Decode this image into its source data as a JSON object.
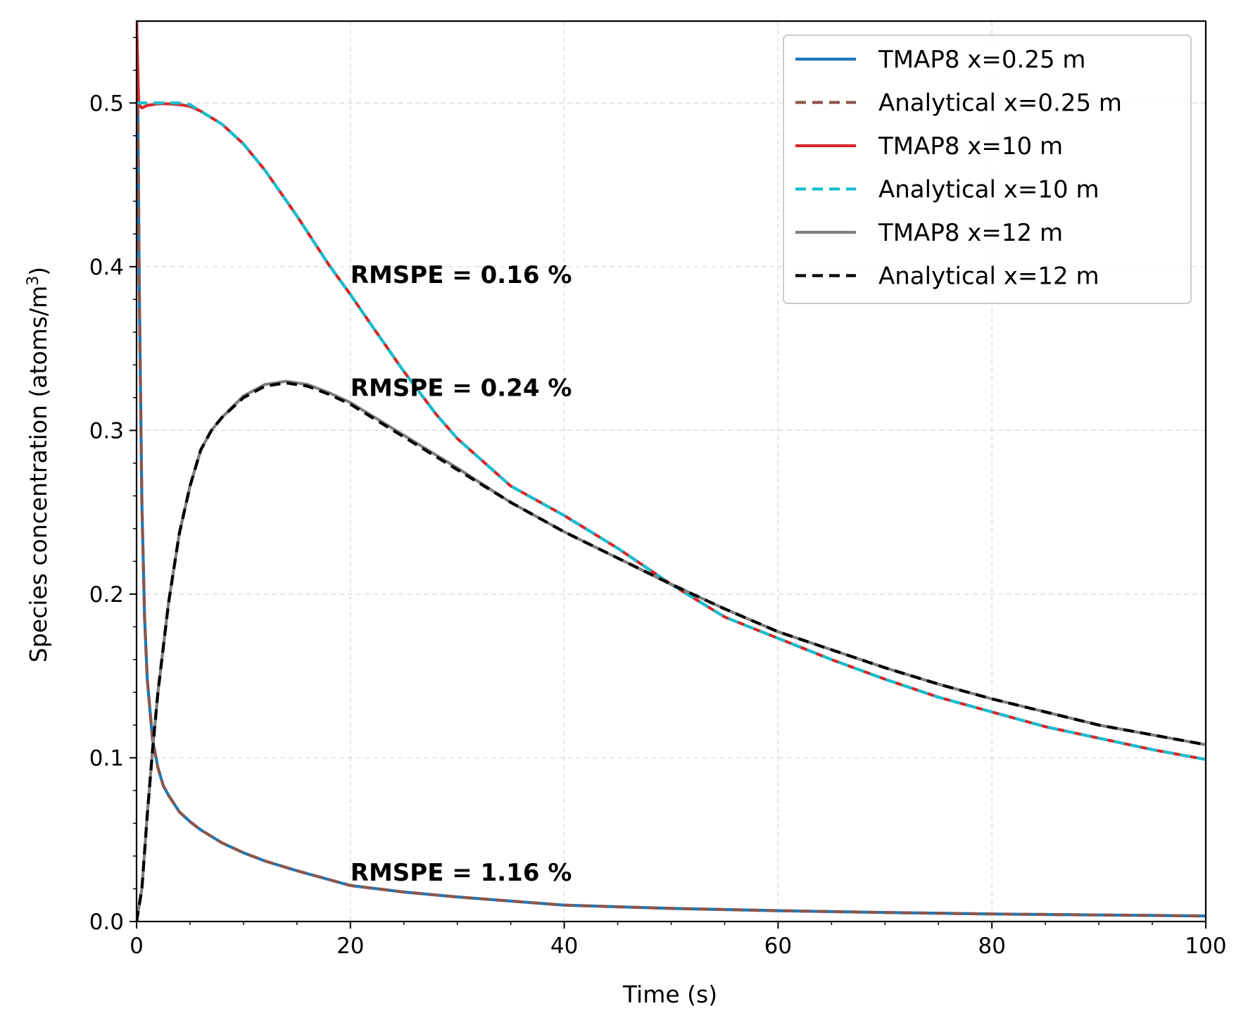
{
  "chart_data": {
    "type": "line",
    "xlabel": "Time (s)",
    "ylabel": "Species concentration (atoms/m",
    "ylabel_superscript": "3",
    "ylabel_suffix": ")",
    "xlim": [
      0,
      100
    ],
    "ylim": [
      0,
      0.55
    ],
    "xticks": [
      0,
      20,
      40,
      60,
      80,
      100
    ],
    "xtick_labels": [
      "0",
      "20",
      "40",
      "60",
      "80",
      "100"
    ],
    "yticks": [
      0.0,
      0.1,
      0.2,
      0.3,
      0.4,
      0.5
    ],
    "ytick_labels": [
      "0.0",
      "0.1",
      "0.2",
      "0.3",
      "0.4",
      "0.5"
    ],
    "grid": true,
    "legend_position": "top-right",
    "series": [
      {
        "name": "TMAP8 x=0.25 m",
        "color": "#1f77b4",
        "style": "solid",
        "x": [
          0,
          0.1,
          0.25,
          0.5,
          0.75,
          1,
          1.5,
          2,
          2.5,
          3,
          4,
          5,
          6,
          8,
          10,
          12,
          15,
          20,
          25,
          30,
          40,
          50,
          60,
          70,
          80,
          90,
          100
        ],
        "y": [
          0.55,
          0.52,
          0.39,
          0.255,
          0.186,
          0.148,
          0.111,
          0.094,
          0.083,
          0.077,
          0.067,
          0.061,
          0.056,
          0.048,
          0.042,
          0.037,
          0.031,
          0.022,
          0.018,
          0.015,
          0.01,
          0.008,
          0.0066,
          0.0055,
          0.0046,
          0.004,
          0.0034
        ]
      },
      {
        "name": "Analytical x=0.25 m",
        "color": "#8c564b",
        "style": "dashed",
        "x": [
          0,
          0.1,
          0.25,
          0.5,
          0.75,
          1,
          1.5,
          2,
          2.5,
          3,
          4,
          5,
          6,
          8,
          10,
          12,
          15,
          20,
          25,
          30,
          40,
          50,
          60,
          70,
          80,
          90,
          100
        ],
        "y": [
          0.55,
          0.52,
          0.39,
          0.255,
          0.186,
          0.148,
          0.111,
          0.094,
          0.083,
          0.077,
          0.067,
          0.061,
          0.056,
          0.048,
          0.042,
          0.037,
          0.031,
          0.022,
          0.018,
          0.015,
          0.01,
          0.008,
          0.0066,
          0.0055,
          0.0046,
          0.004,
          0.0034
        ]
      },
      {
        "name": "TMAP8 x=10 m",
        "color": "#d62728",
        "style": "solid",
        "x": [
          0,
          0.2,
          0.5,
          1,
          2,
          3,
          4,
          5,
          6,
          8,
          10,
          12,
          15,
          18,
          20,
          22,
          25,
          28,
          30,
          35,
          40,
          45,
          50,
          55,
          60,
          65,
          70,
          75,
          80,
          85,
          90,
          95,
          100
        ],
        "y": [
          0.55,
          0.499,
          0.497,
          0.4985,
          0.4995,
          0.4995,
          0.499,
          0.498,
          0.495,
          0.487,
          0.475,
          0.459,
          0.431,
          0.401,
          0.383,
          0.364,
          0.336,
          0.31,
          0.295,
          0.266,
          0.248,
          0.228,
          0.206,
          0.186,
          0.173,
          0.16,
          0.148,
          0.137,
          0.128,
          0.119,
          0.112,
          0.105,
          0.099
        ]
      },
      {
        "name": "Analytical x=10 m",
        "color": "#17becf",
        "style": "dashed",
        "x": [
          0,
          0.2,
          0.5,
          1,
          2,
          3,
          4,
          5,
          6,
          8,
          10,
          12,
          15,
          18,
          20,
          22,
          25,
          28,
          30,
          35,
          40,
          45,
          50,
          55,
          60,
          65,
          70,
          75,
          80,
          85,
          90,
          95,
          100
        ],
        "y": [
          0.5,
          0.5,
          0.5,
          0.5,
          0.5,
          0.5,
          0.5,
          0.499,
          0.495,
          0.487,
          0.475,
          0.459,
          0.431,
          0.401,
          0.383,
          0.364,
          0.336,
          0.31,
          0.295,
          0.266,
          0.248,
          0.228,
          0.206,
          0.186,
          0.173,
          0.16,
          0.148,
          0.137,
          0.128,
          0.119,
          0.112,
          0.105,
          0.099
        ]
      },
      {
        "name": "TMAP8 x=12 m",
        "color": "#7f7f7f",
        "style": "solid",
        "x": [
          0,
          0.5,
          1,
          1.5,
          2,
          3,
          4,
          5,
          6,
          7,
          8,
          10,
          12,
          14,
          16,
          18,
          20,
          25,
          30,
          35,
          40,
          45,
          50,
          55,
          60,
          65,
          70,
          75,
          80,
          85,
          90,
          95,
          100
        ],
        "y": [
          0,
          0.02,
          0.065,
          0.105,
          0.14,
          0.195,
          0.237,
          0.266,
          0.288,
          0.3,
          0.308,
          0.321,
          0.328,
          0.33,
          0.328,
          0.323,
          0.317,
          0.297,
          0.277,
          0.256,
          0.238,
          0.222,
          0.206,
          0.191,
          0.177,
          0.166,
          0.155,
          0.145,
          0.136,
          0.128,
          0.12,
          0.114,
          0.108
        ]
      },
      {
        "name": "Analytical x=12 m",
        "color": "#000000",
        "style": "dashed",
        "x": [
          0,
          0.5,
          1,
          1.5,
          2,
          3,
          4,
          5,
          6,
          7,
          8,
          10,
          12,
          14,
          16,
          18,
          20,
          25,
          30,
          35,
          40,
          45,
          50,
          55,
          60,
          65,
          70,
          75,
          80,
          85,
          90,
          95,
          100
        ],
        "y": [
          0,
          0.02,
          0.065,
          0.105,
          0.14,
          0.195,
          0.237,
          0.266,
          0.288,
          0.3,
          0.308,
          0.32,
          0.327,
          0.329,
          0.327,
          0.322,
          0.316,
          0.296,
          0.276,
          0.256,
          0.238,
          0.222,
          0.206,
          0.191,
          0.177,
          0.166,
          0.155,
          0.145,
          0.136,
          0.128,
          0.12,
          0.114,
          0.108
        ]
      }
    ],
    "annotations": [
      {
        "text": "RMSPE = 0.16 %",
        "x": 20,
        "y": 0.39
      },
      {
        "text": "RMSPE = 0.24 %",
        "x": 20,
        "y": 0.321
      },
      {
        "text": "RMSPE = 1.16 %",
        "x": 20,
        "y": 0.025
      }
    ]
  }
}
